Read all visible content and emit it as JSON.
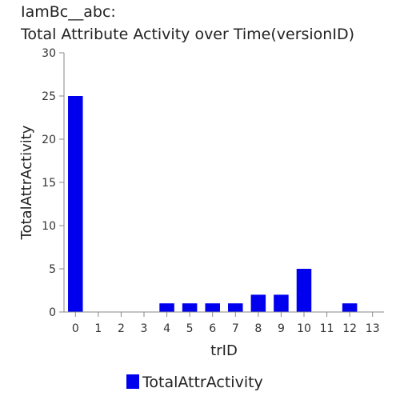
{
  "chart_data": {
    "type": "bar",
    "title_lines": [
      "IamBc__abc:",
      "Total Attribute Activity over Time(versionID)"
    ],
    "xlabel": "trID",
    "ylabel": "TotalAttrActivity",
    "categories": [
      "0",
      "1",
      "2",
      "3",
      "4",
      "5",
      "6",
      "7",
      "8",
      "9",
      "10",
      "11",
      "12",
      "13"
    ],
    "series": [
      {
        "name": "TotalAttrActivity",
        "values": [
          25,
          0,
          0,
          0,
          1,
          1,
          1,
          1,
          2,
          2,
          5,
          0,
          1,
          0
        ]
      }
    ],
    "ylim": [
      0,
      30
    ],
    "yticks": [
      "0",
      "5",
      "10",
      "15",
      "20",
      "25",
      "30"
    ],
    "grid": false,
    "legend": "bottom",
    "colors": {
      "bar": "#0000ee",
      "axis": "#888888"
    }
  }
}
